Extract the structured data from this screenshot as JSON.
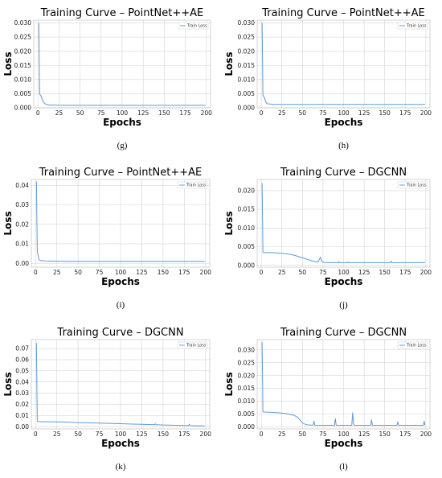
{
  "chart_data": [
    {
      "id": "g",
      "type": "line",
      "caption": "(g)",
      "title": "Training Curve – PointNet++AE",
      "xlabel": "Epochs",
      "ylabel": "Loss",
      "xlim": [
        -5,
        205
      ],
      "ylim": [
        0,
        0.031
      ],
      "xticks": [
        0,
        25,
        50,
        75,
        100,
        125,
        150,
        175,
        200
      ],
      "yticks": [
        0.0,
        0.005,
        0.01,
        0.015,
        0.02,
        0.025,
        0.03
      ],
      "ytick_labels": [
        "0.000",
        "0.005",
        "0.010",
        "0.015",
        "0.020",
        "0.025",
        "0.030"
      ],
      "grid": true,
      "legend_position": "top-right",
      "series": [
        {
          "name": "Train Loss",
          "color": "#5b9bd5",
          "x": [
            1,
            2,
            3,
            4,
            5,
            6,
            8,
            10,
            13,
            17,
            25,
            50,
            100,
            150,
            199
          ],
          "y": [
            0.03,
            0.0048,
            0.0045,
            0.004,
            0.003,
            0.0022,
            0.0015,
            0.0012,
            0.001,
            0.001,
            0.0009,
            0.0009,
            0.0009,
            0.0009,
            0.0009
          ]
        }
      ]
    },
    {
      "id": "h",
      "type": "line",
      "caption": "(h)",
      "title": "Training Curve – PointNet++AE",
      "xlabel": "Epochs",
      "ylabel": "Loss",
      "xlim": [
        -5,
        205
      ],
      "ylim": [
        0,
        0.031
      ],
      "xticks": [
        0,
        25,
        50,
        75,
        100,
        125,
        150,
        175,
        200
      ],
      "yticks": [
        0.0,
        0.005,
        0.01,
        0.015,
        0.02,
        0.025,
        0.03
      ],
      "ytick_labels": [
        "0.000",
        "0.005",
        "0.010",
        "0.015",
        "0.020",
        "0.025",
        "0.030"
      ],
      "grid": true,
      "legend_position": "top-right",
      "series": [
        {
          "name": "Train Loss",
          "color": "#5b9bd5",
          "x": [
            1,
            2,
            3,
            4,
            5,
            6,
            7,
            9,
            12,
            20,
            50,
            100,
            150,
            199
          ],
          "y": [
            0.03,
            0.0045,
            0.004,
            0.0035,
            0.0025,
            0.0018,
            0.0015,
            0.0014,
            0.0013,
            0.0012,
            0.0012,
            0.0012,
            0.0012,
            0.0012
          ]
        }
      ]
    },
    {
      "id": "i",
      "type": "line",
      "caption": "(i)",
      "title": "Training Curve – PointNet++AE",
      "xlabel": "Epochs",
      "ylabel": "Loss",
      "xlim": [
        -5,
        205
      ],
      "ylim": [
        -0.002,
        0.043
      ],
      "xticks": [
        0,
        25,
        50,
        75,
        100,
        125,
        150,
        175,
        200
      ],
      "yticks": [
        0.0,
        0.01,
        0.02,
        0.03,
        0.04
      ],
      "ytick_labels": [
        "0.00",
        "0.01",
        "0.02",
        "0.03",
        "0.04"
      ],
      "grid": true,
      "legend_position": "top-right",
      "series": [
        {
          "name": "Train Loss",
          "color": "#5b9bd5",
          "x": [
            1,
            2,
            3,
            4,
            5,
            7,
            10,
            20,
            50,
            100,
            150,
            199
          ],
          "y": [
            0.042,
            0.006,
            0.004,
            0.002,
            0.0015,
            0.0013,
            0.0012,
            0.0011,
            0.001,
            0.001,
            0.001,
            0.001
          ]
        }
      ]
    },
    {
      "id": "j",
      "type": "line",
      "caption": "(j)",
      "title": "Training Curve – DGCNN",
      "xlabel": "Epochs",
      "ylabel": "Loss",
      "xlim": [
        -5,
        205
      ],
      "ylim": [
        -0.0005,
        0.023
      ],
      "xticks": [
        0,
        25,
        50,
        75,
        100,
        125,
        150,
        175,
        200
      ],
      "yticks": [
        0.0,
        0.005,
        0.01,
        0.015,
        0.02
      ],
      "ytick_labels": [
        "0.000",
        "0.005",
        "0.010",
        "0.015",
        "0.020"
      ],
      "grid": true,
      "legend_position": "top-right",
      "series": [
        {
          "name": "Train Loss",
          "color": "#5b9bd5",
          "x": [
            1,
            2,
            3,
            5,
            10,
            20,
            30,
            40,
            50,
            60,
            65,
            69,
            71,
            72,
            73,
            76,
            80,
            85,
            90,
            93,
            94,
            95,
            100,
            105,
            106,
            107,
            120,
            150,
            157,
            158,
            159,
            170,
            199
          ],
          "y": [
            0.022,
            0.0035,
            0.0034,
            0.0034,
            0.0034,
            0.0033,
            0.0031,
            0.0027,
            0.002,
            0.0013,
            0.001,
            0.0009,
            0.0018,
            0.0022,
            0.0012,
            0.0008,
            0.0007,
            0.0007,
            0.0007,
            0.0007,
            0.001,
            0.0007,
            0.0007,
            0.0007,
            0.0009,
            0.0007,
            0.0007,
            0.0007,
            0.0007,
            0.0011,
            0.0007,
            0.0007,
            0.0007
          ]
        }
      ]
    },
    {
      "id": "k",
      "type": "line",
      "caption": "(k)",
      "title": "Training Curve – DGCNN",
      "xlabel": "Epochs",
      "ylabel": "Loss",
      "xlim": [
        -5,
        205
      ],
      "ylim": [
        -0.002,
        0.078
      ],
      "xticks": [
        0,
        25,
        50,
        75,
        100,
        125,
        150,
        175,
        200
      ],
      "yticks": [
        0.0,
        0.01,
        0.02,
        0.03,
        0.04,
        0.05,
        0.06,
        0.07
      ],
      "ytick_labels": [
        "0.00",
        "0.01",
        "0.02",
        "0.03",
        "0.04",
        "0.05",
        "0.06",
        "0.07"
      ],
      "grid": true,
      "legend_position": "top-right",
      "series": [
        {
          "name": "Train Loss",
          "color": "#5b9bd5",
          "x": [
            1,
            2,
            3,
            5,
            10,
            25,
            40,
            50,
            75,
            100,
            110,
            125,
            140,
            141,
            142,
            150,
            160,
            175,
            180,
            181,
            182,
            190,
            199
          ],
          "y": [
            0.075,
            0.005,
            0.0045,
            0.0045,
            0.0044,
            0.0043,
            0.004,
            0.0037,
            0.0032,
            0.0027,
            0.0024,
            0.0021,
            0.0018,
            0.0026,
            0.0018,
            0.0015,
            0.0013,
            0.0011,
            0.001,
            0.0022,
            0.001,
            0.0008,
            0.0007
          ]
        }
      ]
    },
    {
      "id": "l",
      "type": "line",
      "caption": "(l)",
      "title": "Training Curve – DGCNN",
      "xlabel": "Epochs",
      "ylabel": "Loss",
      "xlim": [
        -5,
        205
      ],
      "ylim": [
        -0.0008,
        0.034
      ],
      "xticks": [
        0,
        25,
        50,
        75,
        100,
        125,
        150,
        175,
        200
      ],
      "yticks": [
        0.0,
        0.005,
        0.01,
        0.015,
        0.02,
        0.025,
        0.03
      ],
      "ytick_labels": [
        "0.000",
        "0.005",
        "0.010",
        "0.015",
        "0.020",
        "0.025",
        "0.030"
      ],
      "grid": true,
      "legend_position": "top-right",
      "series": [
        {
          "name": "Train Loss",
          "color": "#5b9bd5",
          "x": [
            1,
            2,
            3,
            10,
            20,
            30,
            40,
            45,
            50,
            55,
            60,
            63,
            64,
            65,
            66,
            70,
            80,
            89,
            90,
            91,
            100,
            110,
            111,
            112,
            113,
            120,
            133,
            134,
            135,
            136,
            150,
            165,
            166,
            167,
            180,
            197,
            198,
            199
          ],
          "y": [
            0.033,
            0.006,
            0.0058,
            0.0057,
            0.0055,
            0.0052,
            0.0045,
            0.0035,
            0.0015,
            0.0008,
            0.0007,
            0.0007,
            0.0023,
            0.0007,
            0.0006,
            0.0006,
            0.0006,
            0.0006,
            0.0032,
            0.0006,
            0.0006,
            0.0006,
            0.0055,
            0.0015,
            0.0006,
            0.0006,
            0.0006,
            0.0028,
            0.0006,
            0.0006,
            0.0006,
            0.0006,
            0.002,
            0.0006,
            0.0006,
            0.0006,
            0.0022,
            0.0006
          ]
        }
      ]
    }
  ]
}
